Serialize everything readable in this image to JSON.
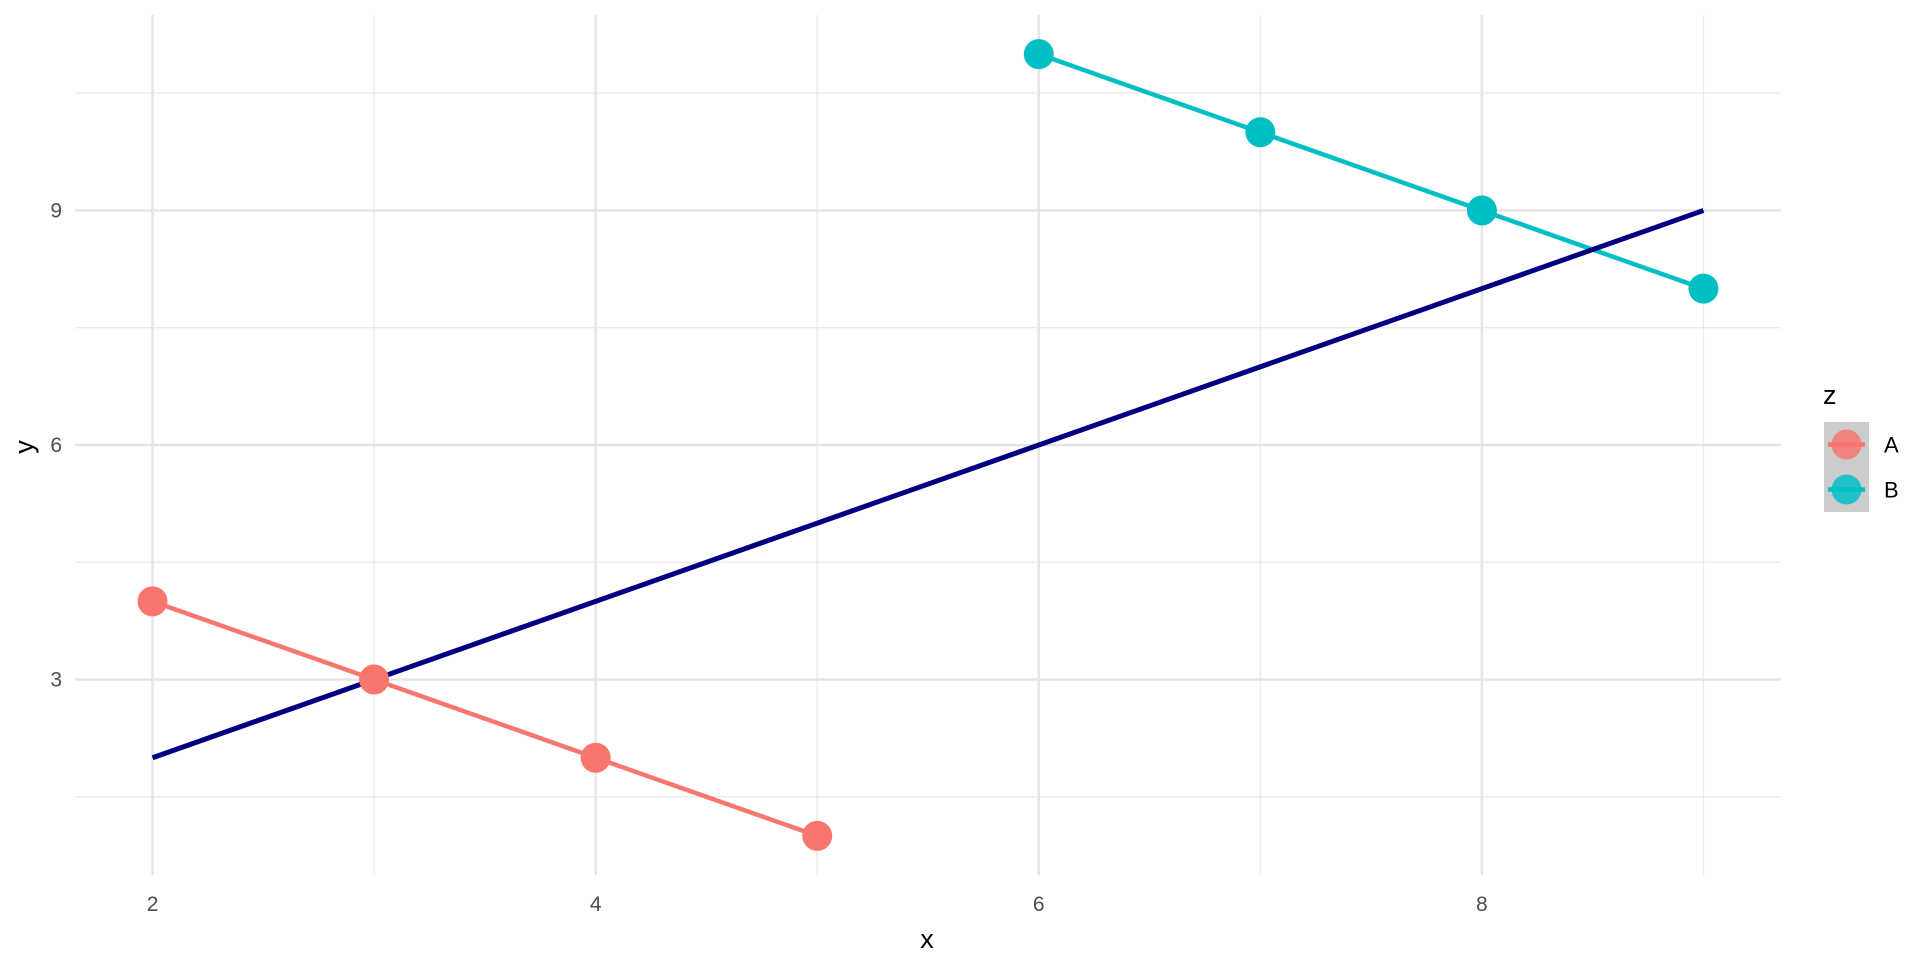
{
  "chart_data": {
    "type": "line",
    "title": "",
    "xlabel": "x",
    "ylabel": "y",
    "xlim": [
      1.65,
      9.35
    ],
    "ylim": [
      0.5,
      11.5
    ],
    "x_ticks": [
      2,
      4,
      6,
      8
    ],
    "y_ticks": [
      3,
      6,
      9
    ],
    "grid": true,
    "legend": {
      "title": "z",
      "position": "right"
    },
    "series": [
      {
        "name": "A",
        "color": "#F8766D",
        "points": true,
        "x": [
          2,
          3,
          4,
          5
        ],
        "y": [
          4,
          3,
          2,
          1
        ]
      },
      {
        "name": "B",
        "color": "#00BFC4",
        "points": true,
        "x": [
          6,
          7,
          8,
          9
        ],
        "y": [
          11,
          10,
          9,
          8
        ]
      }
    ],
    "reference_line": {
      "color": "#000080",
      "x": [
        2,
        9
      ],
      "y": [
        2,
        9
      ]
    }
  }
}
